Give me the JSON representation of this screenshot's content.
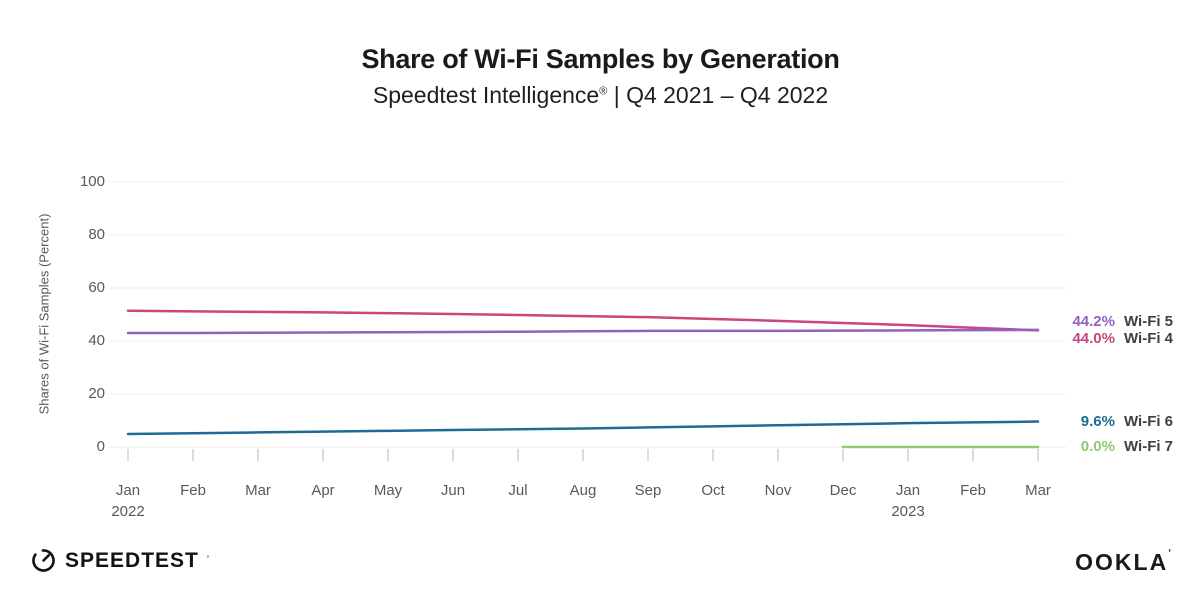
{
  "header": {
    "title": "Share of Wi-Fi Samples by Generation",
    "subtitle_brand": "Speedtest Intelligence",
    "subtitle_sup": "®",
    "subtitle_rest": " | Q4 2021 – Q4 2022"
  },
  "chart_data": {
    "type": "line",
    "title": "Share of Wi-Fi Samples by Generation",
    "subtitle": "Speedtest Intelligence® | Q4 2021 – Q4 2022",
    "ylabel": "Shares of Wi-Fi Samples (Percent)",
    "ylim": [
      0,
      100
    ],
    "yticks": [
      0,
      20,
      40,
      60,
      80,
      100
    ],
    "grid": "horizontal",
    "legend_position": "right-end-labels",
    "x": [
      {
        "month": "Jan",
        "year": "2022"
      },
      {
        "month": "Feb"
      },
      {
        "month": "Mar"
      },
      {
        "month": "Apr"
      },
      {
        "month": "May"
      },
      {
        "month": "Jun"
      },
      {
        "month": "Jul"
      },
      {
        "month": "Aug"
      },
      {
        "month": "Sep"
      },
      {
        "month": "Oct"
      },
      {
        "month": "Nov"
      },
      {
        "month": "Dec"
      },
      {
        "month": "Jan",
        "year": "2023"
      },
      {
        "month": "Feb"
      },
      {
        "month": "Mar"
      }
    ],
    "series": [
      {
        "name": "Wi-Fi 4",
        "color": "#c9477e",
        "end_label": "44.0%",
        "values": [
          51.4,
          51.2,
          51.0,
          50.8,
          50.5,
          50.2,
          49.8,
          49.4,
          49.0,
          48.3,
          47.6,
          46.8,
          46.0,
          45.0,
          44.0
        ]
      },
      {
        "name": "Wi-Fi 5",
        "color": "#9161c0",
        "end_label": "44.2%",
        "values": [
          43.0,
          43.0,
          43.1,
          43.2,
          43.3,
          43.4,
          43.5,
          43.7,
          43.8,
          43.8,
          43.8,
          43.9,
          44.0,
          44.1,
          44.2
        ]
      },
      {
        "name": "Wi-Fi 6",
        "color": "#1f6a93",
        "end_label": "9.6%",
        "values": [
          4.9,
          5.2,
          5.5,
          5.8,
          6.1,
          6.4,
          6.7,
          7.0,
          7.4,
          7.8,
          8.2,
          8.6,
          9.0,
          9.3,
          9.6
        ]
      },
      {
        "name": "Wi-Fi 7",
        "color": "#8fc973",
        "end_label": "0.0%",
        "values": [
          null,
          null,
          null,
          null,
          null,
          null,
          null,
          null,
          null,
          null,
          null,
          0.0,
          0.0,
          0.0,
          0.0
        ]
      }
    ]
  },
  "footer": {
    "speedtest_label": "SPEEDTEST",
    "speedtest_tm": "ʼ",
    "ookla_label": "OOKLA",
    "ookla_tm": "ʼ"
  }
}
